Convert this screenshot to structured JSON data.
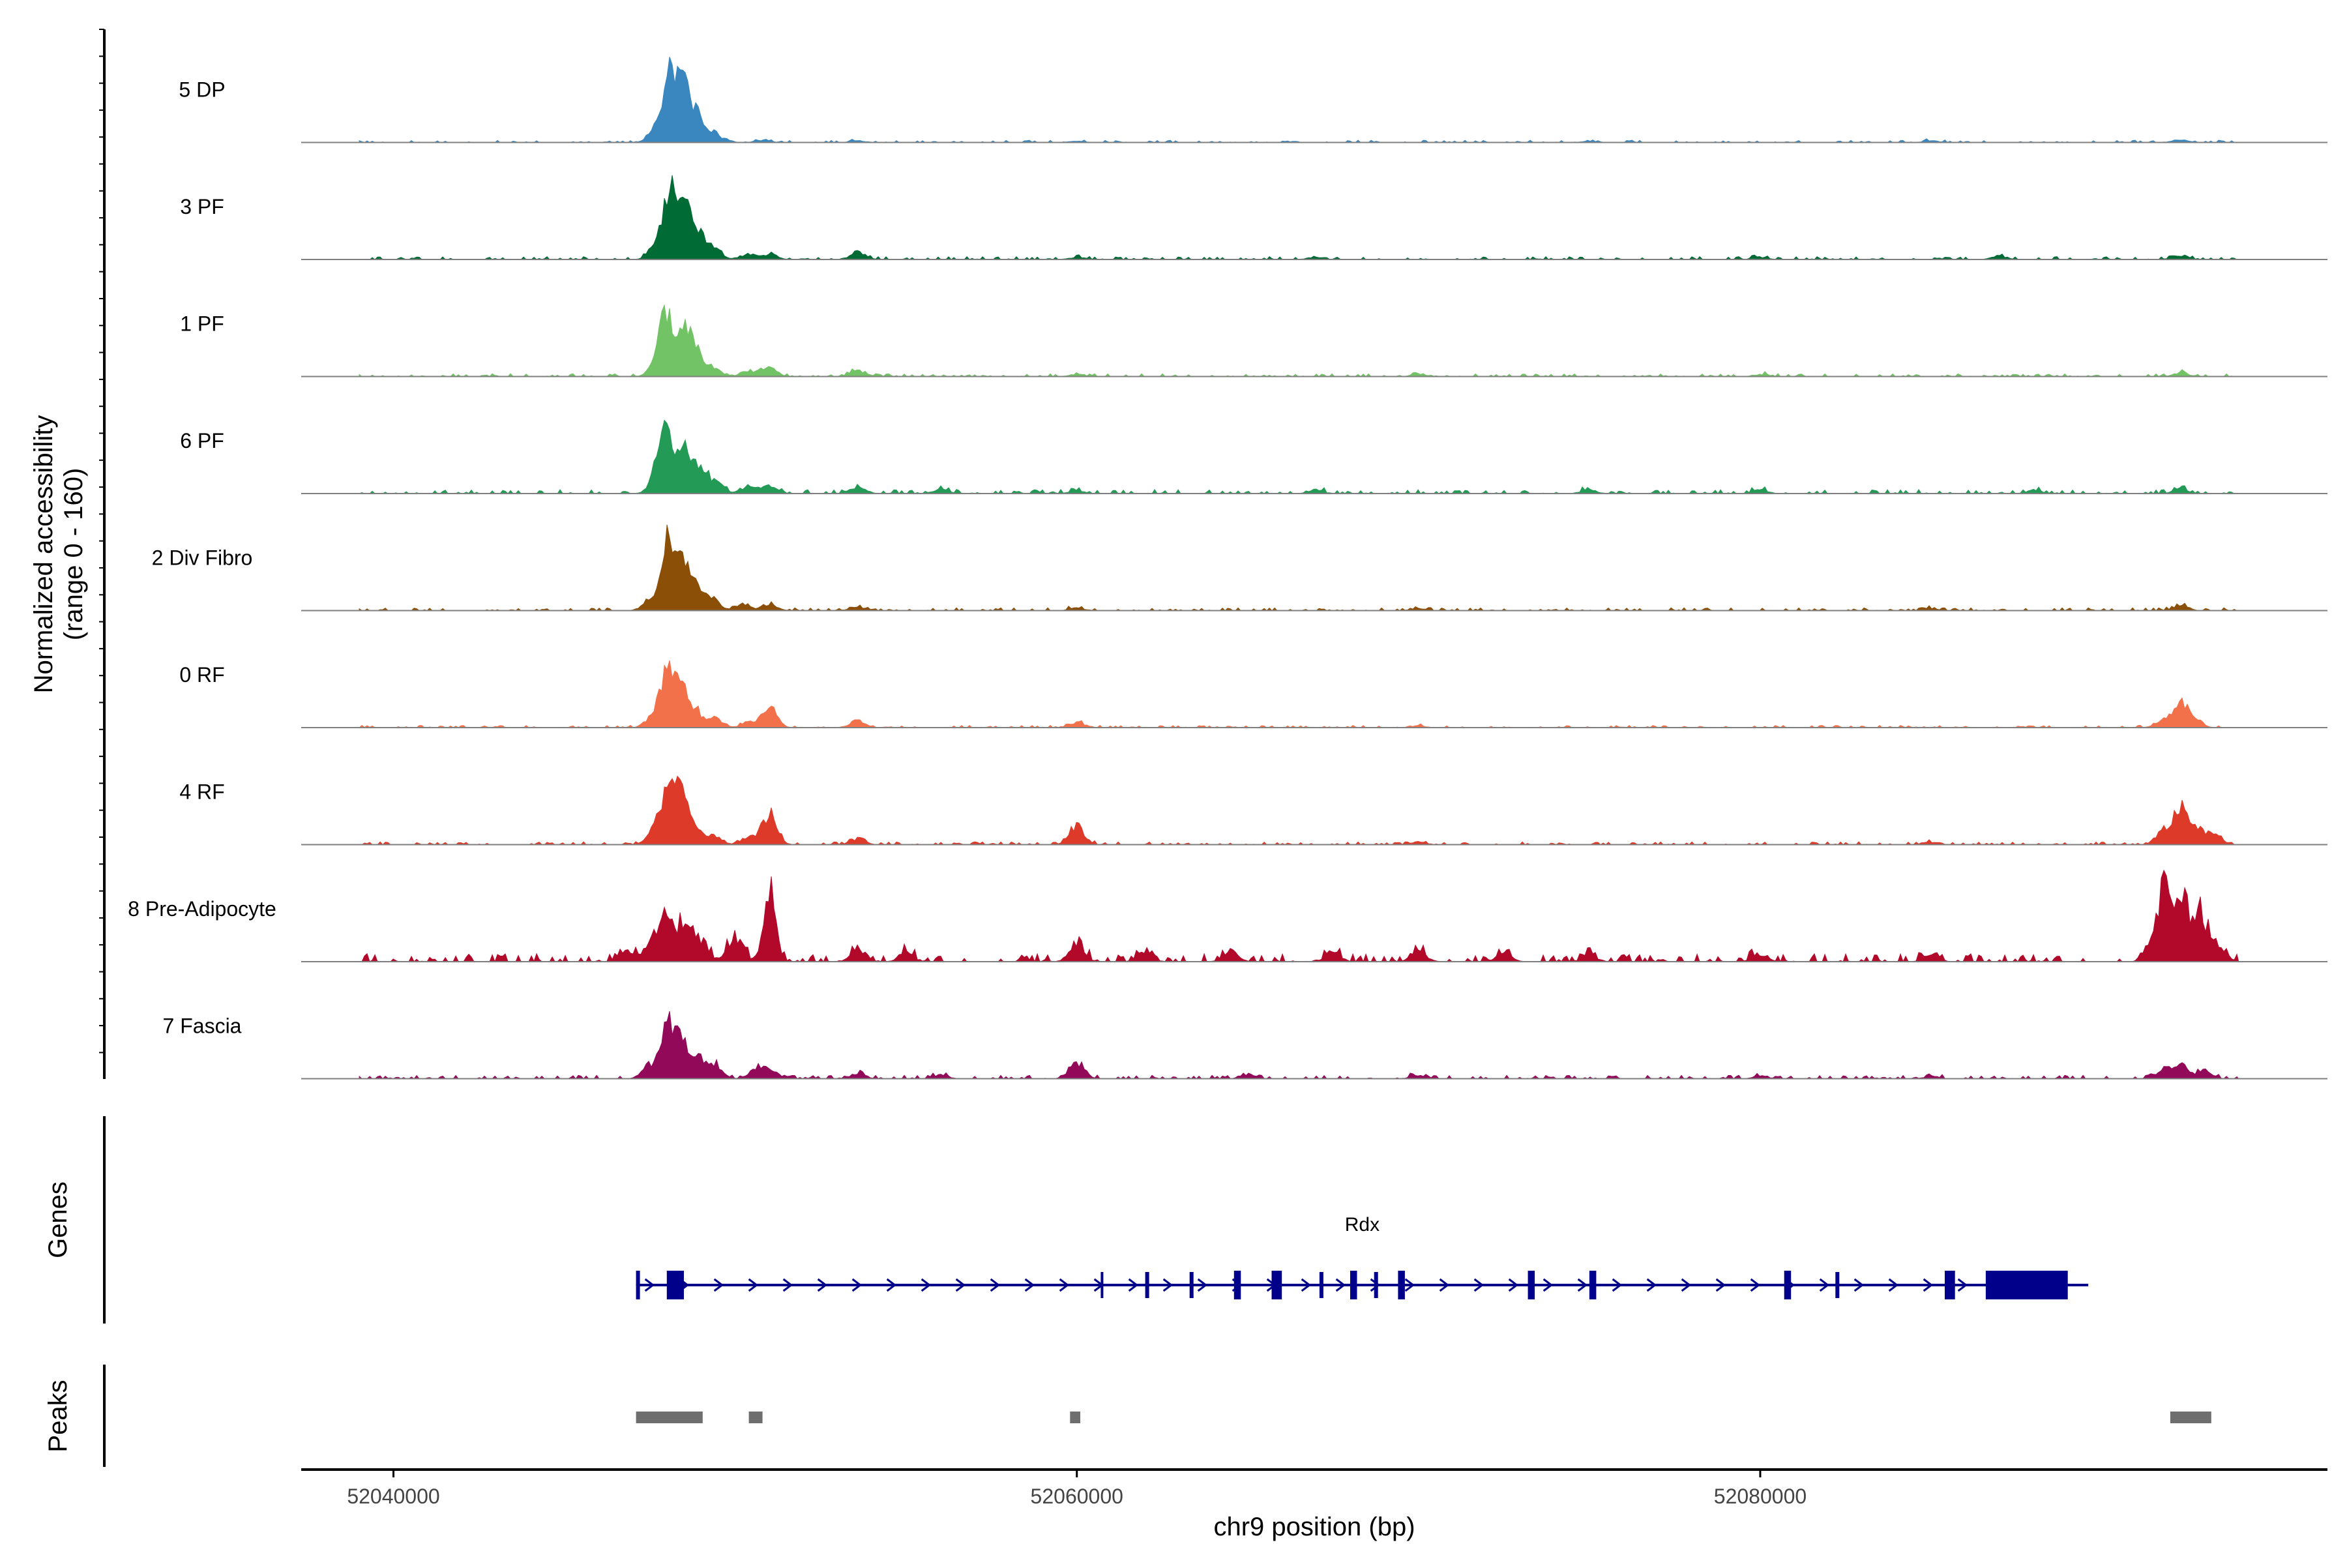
{
  "chart_data": {
    "type": "area",
    "xlabel": "chr9 position (bp)",
    "ylabel_line1": "Normalized accessibility",
    "ylabel_line2": "(range 0 - 160)",
    "ylim": [
      0,
      160
    ],
    "xlim": [
      52037300,
      52096600
    ],
    "x_ticks": [
      52040000,
      52060000,
      52080000
    ],
    "x_tick_labels": [
      "52040000",
      "52060000",
      "52080000"
    ],
    "series": [
      {
        "name": "5 DP",
        "color": "#3a87c0",
        "peaks": [
          [
            52047700,
            30
          ],
          [
            52048100,
            150
          ],
          [
            52048500,
            120
          ],
          [
            52048900,
            60
          ],
          [
            52049400,
            20
          ],
          [
            52050800,
            5
          ],
          [
            52053600,
            4
          ],
          [
            52060000,
            3
          ],
          [
            52075000,
            3
          ],
          [
            52085000,
            4
          ],
          [
            52092300,
            6
          ]
        ],
        "noise": 4
      },
      {
        "name": "3 PF",
        "color": "#006b35",
        "peaks": [
          [
            52047700,
            35
          ],
          [
            52048100,
            145
          ],
          [
            52048500,
            110
          ],
          [
            52048900,
            55
          ],
          [
            52049400,
            25
          ],
          [
            52050400,
            12
          ],
          [
            52051000,
            12
          ],
          [
            52053600,
            18
          ],
          [
            52060000,
            5
          ],
          [
            52067000,
            6
          ],
          [
            52080000,
            5
          ],
          [
            52087000,
            8
          ],
          [
            52092300,
            10
          ]
        ],
        "noise": 5
      },
      {
        "name": "1 PF",
        "color": "#72c365",
        "peaks": [
          [
            52047700,
            30
          ],
          [
            52048000,
            140
          ],
          [
            52048500,
            110
          ],
          [
            52048900,
            50
          ],
          [
            52049400,
            18
          ],
          [
            52050400,
            14
          ],
          [
            52051000,
            18
          ],
          [
            52053600,
            14
          ],
          [
            52060000,
            5
          ],
          [
            52070000,
            5
          ],
          [
            52080000,
            5
          ],
          [
            52092300,
            8
          ]
        ],
        "noise": 5
      },
      {
        "name": "6 PF",
        "color": "#239a55",
        "peaks": [
          [
            52047700,
            40
          ],
          [
            52048000,
            125
          ],
          [
            52048500,
            100
          ],
          [
            52048900,
            55
          ],
          [
            52049400,
            30
          ],
          [
            52050400,
            18
          ],
          [
            52051000,
            16
          ],
          [
            52053600,
            16
          ],
          [
            52056000,
            10
          ],
          [
            52060000,
            6
          ],
          [
            52067000,
            8
          ],
          [
            52075000,
            8
          ],
          [
            52080000,
            8
          ],
          [
            52088000,
            8
          ],
          [
            52092300,
            12
          ]
        ],
        "noise": 7
      },
      {
        "name": "2 Div Fibro",
        "color": "#8b4f08",
        "peaks": [
          [
            52047500,
            20
          ],
          [
            52048000,
            155
          ],
          [
            52048400,
            110
          ],
          [
            52048800,
            60
          ],
          [
            52049300,
            30
          ],
          [
            52050200,
            14
          ],
          [
            52051000,
            14
          ],
          [
            52053600,
            8
          ],
          [
            52060000,
            6
          ],
          [
            52070000,
            5
          ],
          [
            52085000,
            5
          ],
          [
            52092300,
            12
          ]
        ],
        "noise": 5
      },
      {
        "name": "0 RF",
        "color": "#f2714a",
        "peaks": [
          [
            52047600,
            25
          ],
          [
            52048000,
            130
          ],
          [
            52048400,
            100
          ],
          [
            52048800,
            40
          ],
          [
            52049400,
            20
          ],
          [
            52050400,
            12
          ],
          [
            52051000,
            48
          ],
          [
            52053600,
            16
          ],
          [
            52060000,
            12
          ],
          [
            52070000,
            4
          ],
          [
            52091800,
            20
          ],
          [
            52092300,
            50
          ],
          [
            52092700,
            18
          ]
        ],
        "noise": 4
      },
      {
        "name": "4 RF",
        "color": "#dd3a2a",
        "peaks": [
          [
            52047600,
            30
          ],
          [
            52048000,
            130
          ],
          [
            52048400,
            100
          ],
          [
            52048800,
            40
          ],
          [
            52049400,
            20
          ],
          [
            52050400,
            14
          ],
          [
            52051000,
            70
          ],
          [
            52053600,
            14
          ],
          [
            52060000,
            45
          ],
          [
            52070000,
            6
          ],
          [
            52085000,
            6
          ],
          [
            52091800,
            30
          ],
          [
            52092300,
            85
          ],
          [
            52092800,
            30
          ],
          [
            52093300,
            20
          ]
        ],
        "noise": 5
      },
      {
        "name": "8 Pre-Adipocyte",
        "color": "#b2082a",
        "peaks": [
          [
            52046800,
            30
          ],
          [
            52047600,
            60
          ],
          [
            52048000,
            95
          ],
          [
            52048500,
            100
          ],
          [
            52049000,
            50
          ],
          [
            52050000,
            60
          ],
          [
            52051000,
            150
          ],
          [
            52053600,
            30
          ],
          [
            52055000,
            20
          ],
          [
            52060000,
            45
          ],
          [
            52062000,
            22
          ],
          [
            52064500,
            25
          ],
          [
            52067500,
            20
          ],
          [
            52070000,
            25
          ],
          [
            52072500,
            18
          ],
          [
            52075000,
            16
          ],
          [
            52080000,
            18
          ],
          [
            52085000,
            18
          ],
          [
            52091600,
            60
          ],
          [
            52091900,
            155
          ],
          [
            52092400,
            150
          ],
          [
            52092900,
            100
          ],
          [
            52093400,
            40
          ]
        ],
        "noise": 14
      },
      {
        "name": "7 Fascia",
        "color": "#93095a",
        "peaks": [
          [
            52047500,
            30
          ],
          [
            52048000,
            115
          ],
          [
            52048400,
            80
          ],
          [
            52048900,
            45
          ],
          [
            52049400,
            30
          ],
          [
            52050600,
            18
          ],
          [
            52051000,
            25
          ],
          [
            52053600,
            12
          ],
          [
            52056000,
            8
          ],
          [
            52060000,
            38
          ],
          [
            52065000,
            8
          ],
          [
            52070000,
            8
          ],
          [
            52080000,
            6
          ],
          [
            52085000,
            6
          ],
          [
            52091800,
            20
          ],
          [
            52092300,
            28
          ],
          [
            52093000,
            18
          ]
        ],
        "noise": 6
      }
    ],
    "genes_title": "Genes",
    "gene": {
      "name": "Rdx",
      "start": 52047100,
      "end": 52089600,
      "strand": "+",
      "color": "#00008b",
      "exons": [
        [
          52047100,
          52047200
        ],
        [
          52048000,
          52048500
        ],
        [
          52062000,
          52062100
        ],
        [
          52063300,
          52063400
        ],
        [
          52064600,
          52064800
        ],
        [
          52065700,
          52066000
        ],
        [
          52067100,
          52067200
        ],
        [
          52068000,
          52068200
        ],
        [
          52068700,
          52068800
        ],
        [
          52069400,
          52069600
        ],
        [
          52073200,
          52073400
        ],
        [
          52075000,
          52075200
        ],
        [
          52080700,
          52080900
        ],
        [
          52082200,
          52082300
        ],
        [
          52085400,
          52085700
        ],
        [
          52086600,
          52089000
        ]
      ],
      "introns_small": [
        [
          52060700,
          52060750
        ]
      ]
    },
    "peaks_title": "Peaks",
    "peaks_color": "#6e6e6e",
    "peak_regions": [
      [
        52047100,
        52049050
      ],
      [
        52050400,
        52050800
      ],
      [
        52059800,
        52060100
      ],
      [
        52092000,
        52093200
      ]
    ]
  }
}
